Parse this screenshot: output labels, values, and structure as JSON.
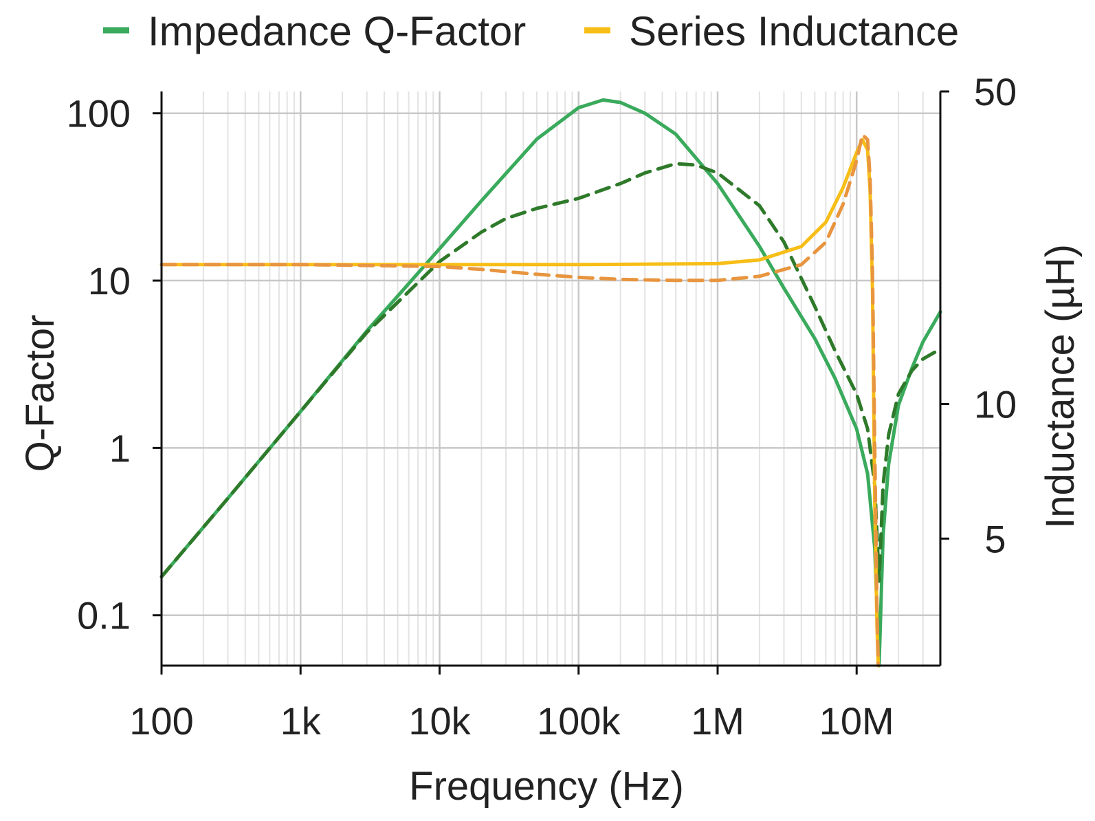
{
  "chart_data": {
    "type": "line",
    "title": "",
    "xlabel": "Frequency (Hz)",
    "ylabel": "Q-Factor",
    "y2label": "Inductance (µH)",
    "xscale": "log",
    "yscale": "log",
    "y2scale": "log",
    "xlim": [
      100,
      40000000
    ],
    "ylim": [
      0.05,
      135
    ],
    "y2lim": [
      2.6,
      50
    ],
    "grid": true,
    "legend_position": "top",
    "x_ticks": [
      {
        "value": 100,
        "label": "100"
      },
      {
        "value": 1000,
        "label": "1k"
      },
      {
        "value": 10000,
        "label": "10k"
      },
      {
        "value": 100000,
        "label": "100k"
      },
      {
        "value": 1000000,
        "label": "1M"
      },
      {
        "value": 10000000,
        "label": "10M"
      }
    ],
    "y_ticks": [
      {
        "value": 0.1,
        "label": "0.1"
      },
      {
        "value": 1,
        "label": "1"
      },
      {
        "value": 10,
        "label": "10"
      },
      {
        "value": 100,
        "label": "100"
      }
    ],
    "y2_ticks": [
      {
        "value": 5,
        "label": "5"
      },
      {
        "value": 10,
        "label": "10"
      },
      {
        "value": 50,
        "label": "50"
      }
    ],
    "legend": [
      {
        "label": "Impedance Q-Factor",
        "color": "#3aaa5c"
      },
      {
        "label": "Series Inductance",
        "color": "#f7be17"
      }
    ],
    "series": [
      {
        "axis": "left",
        "style": "solid",
        "color": "#3aaa5c",
        "points": [
          [
            100,
            0.17
          ],
          [
            300,
            0.5
          ],
          [
            1000,
            1.65
          ],
          [
            3000,
            5
          ],
          [
            10000,
            15.5
          ],
          [
            20000,
            30
          ],
          [
            50000,
            70
          ],
          [
            100000,
            108
          ],
          [
            150000,
            120
          ],
          [
            200000,
            116
          ],
          [
            300000,
            100
          ],
          [
            500000,
            75
          ],
          [
            1000000,
            38
          ],
          [
            2000000,
            16
          ],
          [
            3000000,
            9
          ],
          [
            5000000,
            4.5
          ],
          [
            7000000,
            2.6
          ],
          [
            10000000,
            1.3
          ],
          [
            12000000,
            0.7
          ],
          [
            13500000,
            0.25
          ],
          [
            14500000,
            0.05
          ],
          [
            15500000,
            0.3
          ],
          [
            17000000,
            0.8
          ],
          [
            20000000,
            1.8
          ],
          [
            25000000,
            3.0
          ],
          [
            30000000,
            4.3
          ],
          [
            40000000,
            6.5
          ]
        ]
      },
      {
        "axis": "left",
        "style": "dashed",
        "color": "#2e7a2a",
        "points": [
          [
            100,
            0.17
          ],
          [
            300,
            0.5
          ],
          [
            1000,
            1.65
          ],
          [
            3000,
            4.9
          ],
          [
            10000,
            13
          ],
          [
            20000,
            19.5
          ],
          [
            30000,
            23.5
          ],
          [
            50000,
            27
          ],
          [
            100000,
            31
          ],
          [
            200000,
            38
          ],
          [
            300000,
            44
          ],
          [
            500000,
            50
          ],
          [
            700000,
            49
          ],
          [
            1000000,
            44
          ],
          [
            2000000,
            28
          ],
          [
            3000000,
            17
          ],
          [
            5000000,
            7
          ],
          [
            7000000,
            3.8
          ],
          [
            10000000,
            2.1
          ],
          [
            12000000,
            1.3
          ],
          [
            13500000,
            0.6
          ],
          [
            14500000,
            0.16
          ],
          [
            15500000,
            0.6
          ],
          [
            17000000,
            1.2
          ],
          [
            20000000,
            2.1
          ],
          [
            25000000,
            2.9
          ],
          [
            30000000,
            3.4
          ],
          [
            40000000,
            3.9
          ]
        ]
      },
      {
        "axis": "right",
        "style": "solid",
        "color": "#f7be17",
        "points": [
          [
            100,
            20.5
          ],
          [
            1000,
            20.5
          ],
          [
            10000,
            20.5
          ],
          [
            100000,
            20.5
          ],
          [
            1000000,
            20.6
          ],
          [
            2000000,
            21
          ],
          [
            4000000,
            22.5
          ],
          [
            6000000,
            25.5
          ],
          [
            8000000,
            30.5
          ],
          [
            10000000,
            36.5
          ],
          [
            11000000,
            39
          ],
          [
            12000000,
            37
          ],
          [
            12500000,
            30
          ],
          [
            13000000,
            18
          ],
          [
            13500000,
            6
          ],
          [
            14000000,
            3.2
          ],
          [
            14300000,
            2.6
          ]
        ]
      },
      {
        "axis": "right",
        "style": "dashed",
        "color": "#e8953f",
        "points": [
          [
            100,
            20.5
          ],
          [
            1000,
            20.5
          ],
          [
            10000,
            20.3
          ],
          [
            20000,
            20
          ],
          [
            50000,
            19.5
          ],
          [
            100000,
            19.2
          ],
          [
            200000,
            19
          ],
          [
            500000,
            18.9
          ],
          [
            1000000,
            18.9
          ],
          [
            2000000,
            19.3
          ],
          [
            4000000,
            20.5
          ],
          [
            6000000,
            23
          ],
          [
            8000000,
            28
          ],
          [
            10000000,
            35
          ],
          [
            11000000,
            40
          ],
          [
            12000000,
            39
          ],
          [
            12500000,
            32
          ],
          [
            13000000,
            20
          ],
          [
            13500000,
            8
          ],
          [
            14000000,
            3.5
          ],
          [
            14300000,
            2.6
          ]
        ]
      }
    ]
  }
}
